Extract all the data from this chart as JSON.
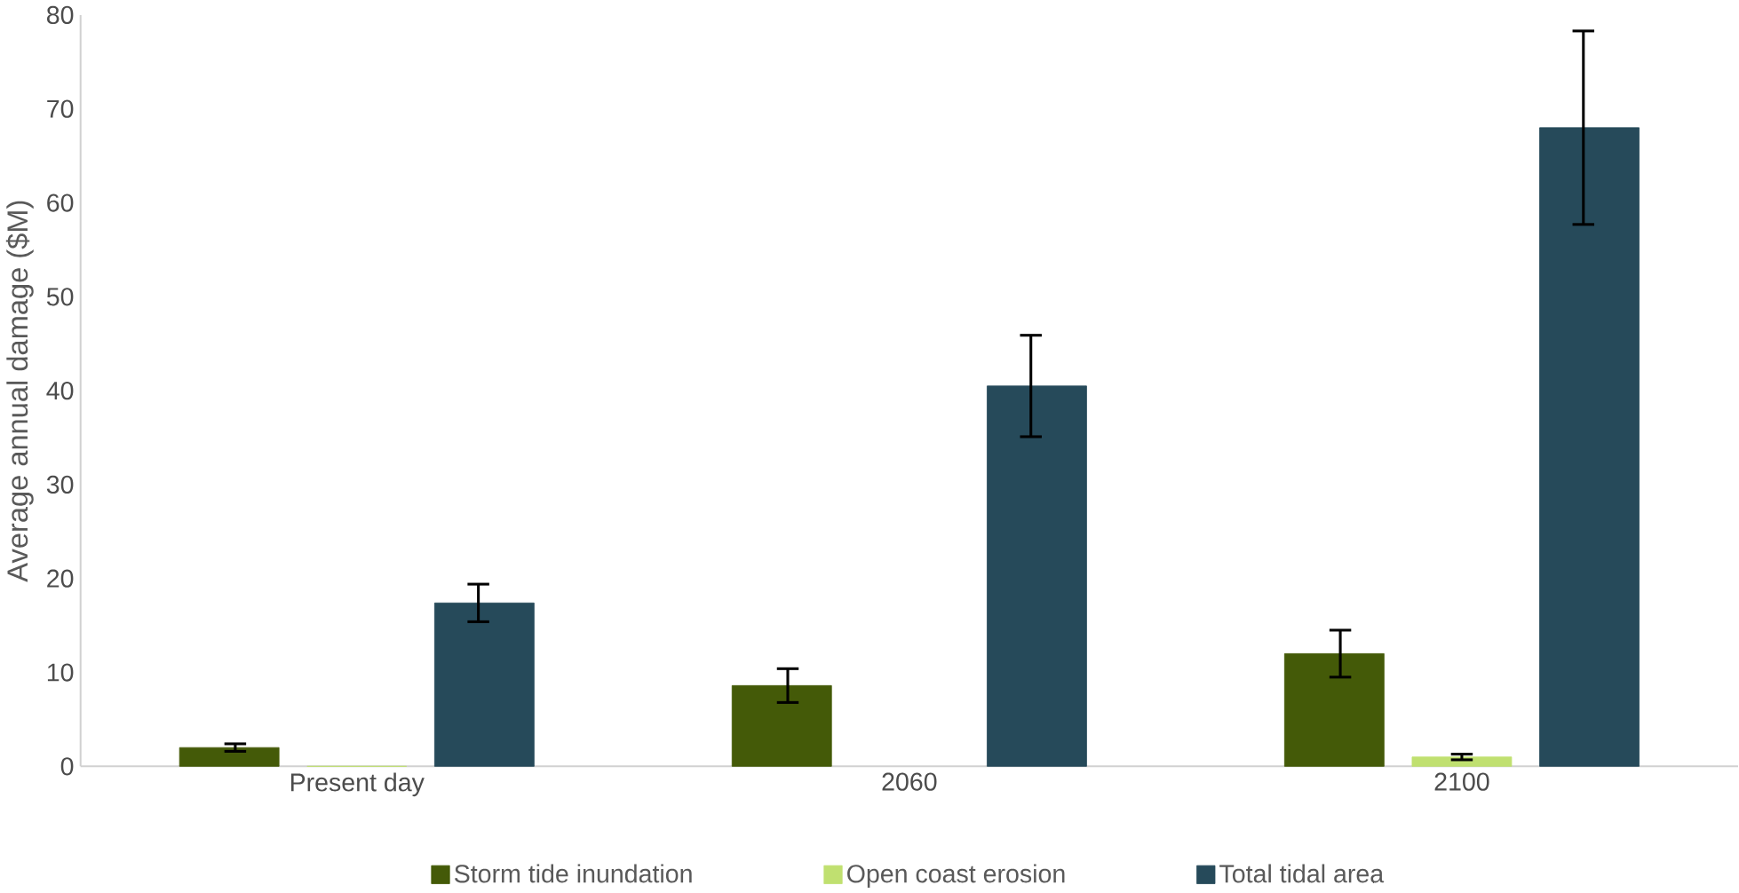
{
  "chart_data": {
    "type": "bar",
    "ylabel": "Average annual damage ($M)",
    "categories": [
      "Present day",
      "2060",
      "2100"
    ],
    "series": [
      {
        "name": "Storm tide inundation",
        "color": "#445a08",
        "values": [
          2.0,
          8.6,
          12.0
        ],
        "errors": [
          0.4,
          1.8,
          2.5
        ]
      },
      {
        "name": "Open coast erosion",
        "color": "#c0e070",
        "values": [
          0,
          null,
          1.0
        ],
        "errors": [
          null,
          null,
          0.3
        ]
      },
      {
        "name": "Total tidal area",
        "color": "#264a5a",
        "values": [
          17.4,
          40.5,
          68.0
        ],
        "errors": [
          2.0,
          5.4,
          10.3
        ]
      }
    ],
    "ylim": [
      0,
      80
    ],
    "yticks": [
      0,
      10,
      20,
      30,
      40,
      50,
      60,
      70,
      80
    ],
    "grid": false,
    "legend": "bottom"
  }
}
